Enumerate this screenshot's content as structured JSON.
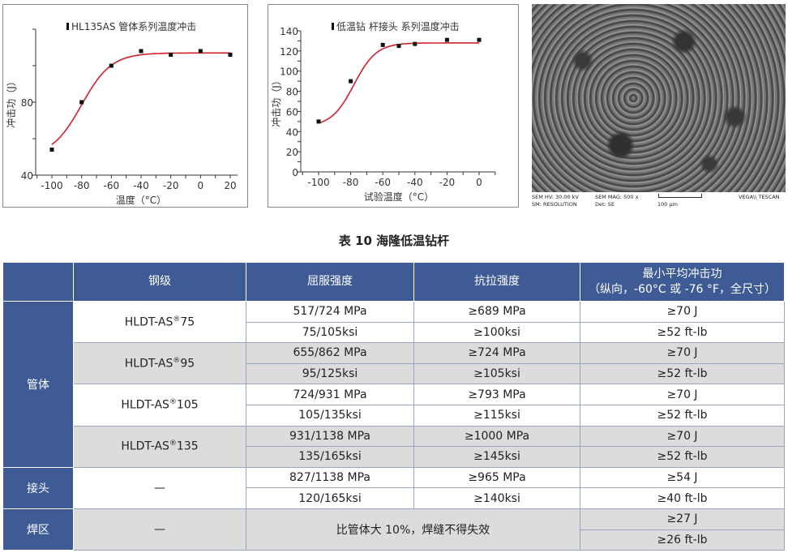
{
  "chart_data": [
    {
      "type": "scatter",
      "legend": "HL135AS 管体系列温度冲击",
      "xlabel": "温度（°C）",
      "ylabel": "冲击功（J）",
      "xlim": [
        -110,
        25
      ],
      "ylim": [
        40,
        120
      ],
      "xticks": [
        "-100",
        "-80",
        "-60",
        "-40",
        "-20",
        "0",
        "20"
      ],
      "yticks": [
        "40",
        "80"
      ],
      "x": [
        -100,
        -80,
        -60,
        -40,
        -20,
        0,
        20
      ],
      "y": [
        54,
        80,
        100,
        108,
        106,
        108,
        106
      ],
      "fit_color": "#d0202a"
    },
    {
      "type": "scatter",
      "legend": "低温钻 杆接头 系列温度冲击",
      "xlabel": "试验温度（°C）",
      "ylabel": "冲击功（J）",
      "xlim": [
        -110,
        10
      ],
      "ylim": [
        0,
        140
      ],
      "xticks": [
        "-100",
        "-80",
        "-60",
        "-40",
        "-20",
        "0"
      ],
      "yticks": [
        "0",
        "20",
        "40",
        "60",
        "80",
        "100",
        "120",
        "140"
      ],
      "x": [
        -100,
        -80,
        -60,
        -50,
        -40,
        -20,
        0
      ],
      "y": [
        50,
        90,
        126,
        125,
        127,
        131,
        131
      ],
      "fit_color": "#d0202a"
    }
  ],
  "sem": {
    "hv": "SEM HV: 30.00 kV",
    "mag": "SEM MAG: 500 x",
    "brand": "VEGA\\\\ TESCAN",
    "mode": "SM: RESOLUTION",
    "det": "Det: SE",
    "scale": "100 μm"
  },
  "caption": "表 10 海隆低温钻杆",
  "table": {
    "headers": [
      "",
      "钢级",
      "屈服强度",
      "抗拉强度",
      "最小平均冲击功",
      "（纵向，-60°C 或 -76 °F，全尺寸）"
    ],
    "groups": {
      "pipe": "管体",
      "joint": "接头",
      "weld": "焊区"
    },
    "grades": [
      {
        "name": "HLDT-AS",
        "reg": "®",
        "num": "75"
      },
      {
        "name": "HLDT-AS",
        "reg": "®",
        "num": "95"
      },
      {
        "name": "HLDT-AS",
        "reg": "®",
        "num": "105"
      },
      {
        "name": "HLDT-AS",
        "reg": "®",
        "num": "135"
      }
    ],
    "rows": [
      [
        "517/724 MPa",
        "≥689 MPa",
        "≥70 J"
      ],
      [
        "75/105ksi",
        "≥100ksi",
        "≥52 ft-lb"
      ],
      [
        "655/862 MPa",
        "≥724 MPa",
        "≥70 J"
      ],
      [
        "95/125ksi",
        "≥105ksi",
        "≥52 ft-lb"
      ],
      [
        "724/931 MPa",
        "≥793 MPa",
        "≥70 J"
      ],
      [
        "105/135ksi",
        "≥115ksi",
        "≥52 ft-lb"
      ],
      [
        "931/1138 MPa",
        "≥1000 MPa",
        "≥70 J"
      ],
      [
        "135/165ksi",
        "≥145ksi",
        "≥52 ft-lb"
      ],
      [
        "827/1138 MPa",
        "≥965 MPa",
        "≥54 J"
      ],
      [
        "120/165ksi",
        "≥140ksi",
        "≥40 ft-lb"
      ]
    ],
    "dash": "—",
    "weld_text": "比管体大 10%，焊缝不得失效",
    "weld_impact": [
      "≥27 J",
      "≥26 ft-lb"
    ]
  }
}
